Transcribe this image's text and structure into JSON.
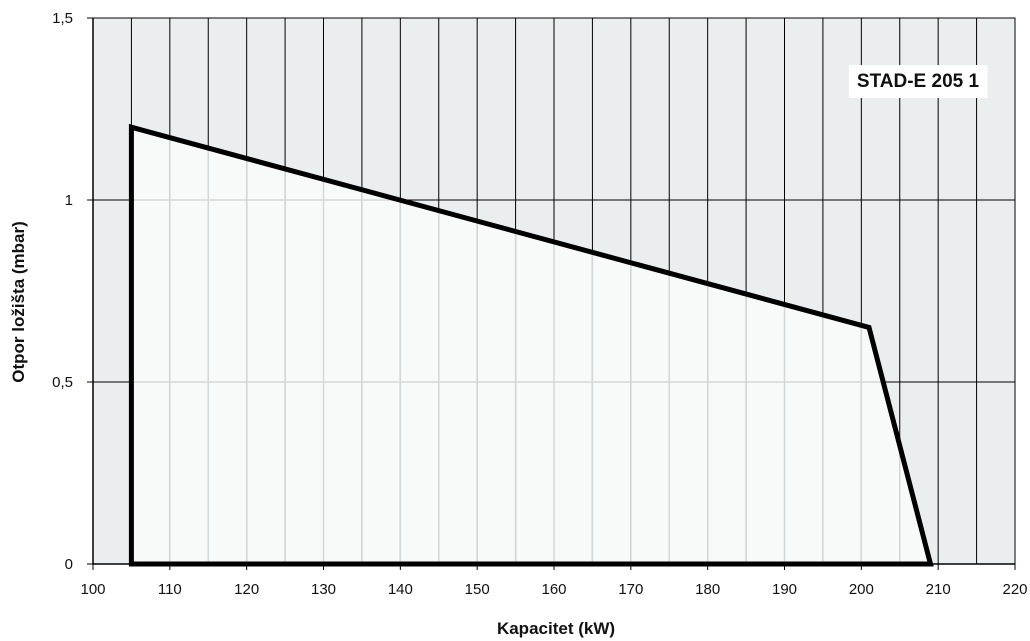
{
  "chart_data": {
    "type": "area",
    "title": "",
    "series_label": "STAD-E 205 1",
    "xlabel": "Kapacitet (kW)",
    "ylabel": "Otpor ložišta (mbar)",
    "xlim": [
      100,
      220
    ],
    "ylim": [
      0,
      1.5
    ],
    "x_ticks": [
      "100",
      "110",
      "120",
      "130",
      "140",
      "150",
      "160",
      "170",
      "180",
      "190",
      "200",
      "210",
      "220"
    ],
    "y_ticks": [
      "0",
      "0,5",
      "1",
      "1,5"
    ],
    "grid": true,
    "series": [
      {
        "x": [
          105,
          105,
          201,
          209,
          105
        ],
        "y": [
          0,
          1.2,
          0.65,
          0,
          0
        ]
      }
    ],
    "colors": {
      "plot_bg": "#ebeeef",
      "fill": "#f8f9f9",
      "line": "#000000",
      "grid": "#000000"
    }
  }
}
